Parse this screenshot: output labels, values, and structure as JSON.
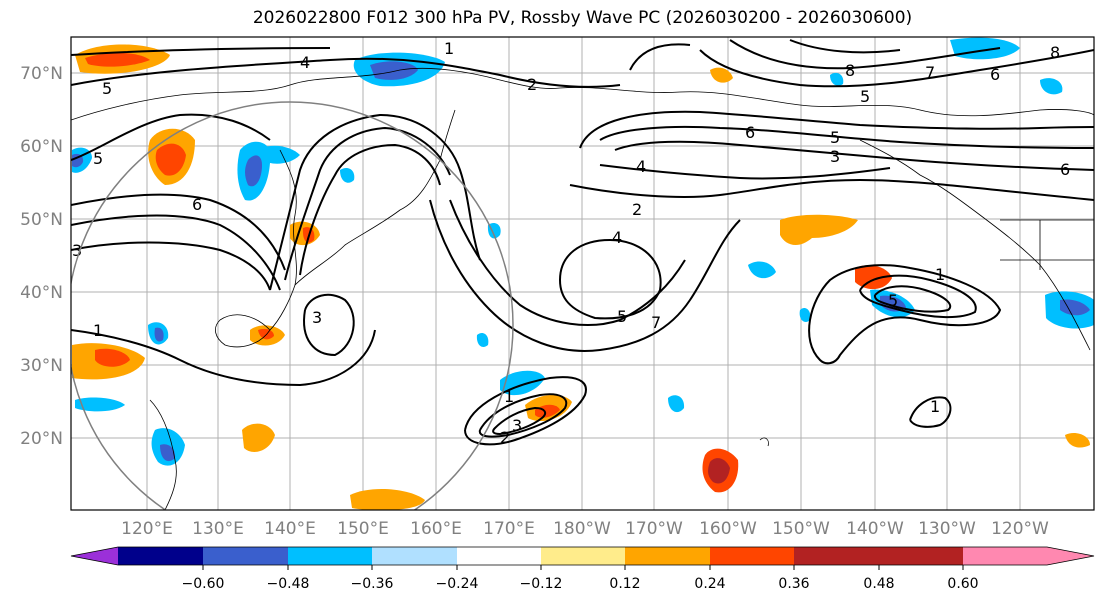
{
  "title": "2026022800 F012 300 hPa PV, Rossby Wave PC (2026030200 - 2026030600)",
  "lat_labels": [
    "70°N",
    "60°N",
    "50°N",
    "40°N",
    "30°N",
    "20°N"
  ],
  "lon_labels": [
    "120°E",
    "130°E",
    "140°E",
    "150°E",
    "160°E",
    "170°E",
    "180°W",
    "170°W",
    "160°W",
    "150°W",
    "140°W",
    "130°W",
    "120°W"
  ],
  "colorbar": {
    "ticks": [
      "−0.60",
      "−0.48",
      "−0.36",
      "−0.24",
      "−0.12",
      "0.12",
      "0.24",
      "0.36",
      "0.48",
      "0.60"
    ],
    "colors": [
      "#9b30d9",
      "#00008b",
      "#3a5fcd",
      "#00bfff",
      "#b0e0ff",
      "#ffffff",
      "#ffec8b",
      "#ffa500",
      "#ff4500",
      "#b22222",
      "#ff88b0"
    ]
  },
  "contour_labels": [
    "5",
    "4",
    "5",
    "6",
    "3",
    "1",
    "3",
    "2",
    "4",
    "5",
    "7",
    "2",
    "3",
    "2",
    "1",
    "6",
    "5",
    "3",
    "4",
    "8",
    "7",
    "6",
    "8",
    "5",
    "6",
    "1",
    "5",
    "1",
    "1"
  ]
}
